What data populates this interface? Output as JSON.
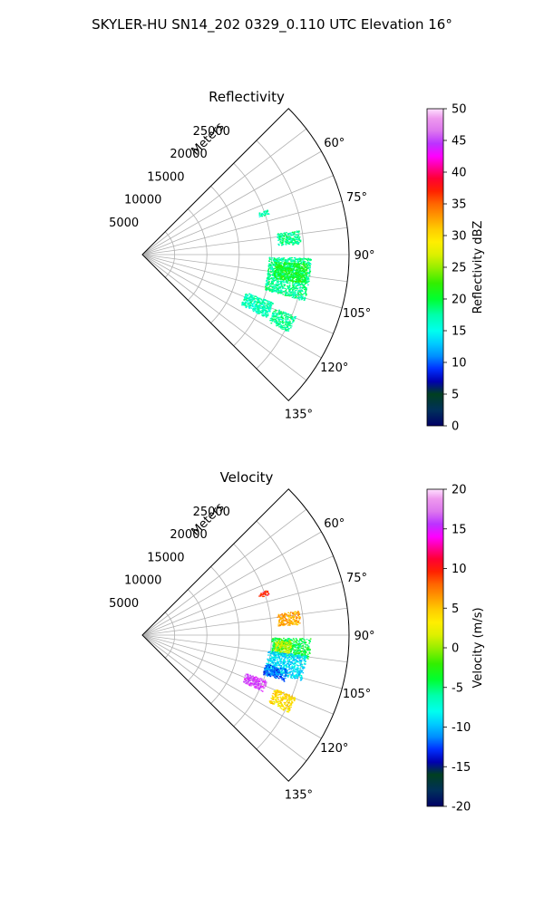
{
  "figure": {
    "suptitle": "SKYLER-HU  SN14_202  0329_0.110 UTC Elevation 16°"
  },
  "chart_data": [
    {
      "type": "polar-sector",
      "title": "Reflectivity",
      "radial_label": "Meters",
      "radial_ticks": [
        5000,
        10000,
        15000,
        20000,
        25000
      ],
      "radial_tick_labels": [
        "5000",
        "10000",
        "15000",
        "20000",
        "25000"
      ],
      "rlim": [
        0,
        32000
      ],
      "theta_ticks_deg": [
        60,
        75,
        90,
        105,
        120,
        135
      ],
      "theta_tick_labels": [
        "60°",
        "75°",
        "90°",
        "105°",
        "120°",
        "135°"
      ],
      "thetalim_deg": [
        45,
        135
      ],
      "grid": true,
      "colorbar": {
        "label": "Reflectivity dBZ",
        "range": [
          0,
          50
        ],
        "ticks": [
          0,
          5,
          10,
          15,
          20,
          25,
          30,
          35,
          40,
          45,
          50
        ],
        "tick_labels": [
          "0",
          "5",
          "10",
          "15",
          "20",
          "25",
          "30",
          "35",
          "40",
          "45",
          "50"
        ]
      },
      "echo_clusters": [
        {
          "az_deg": [
            70,
            72
          ],
          "range_m": [
            19000,
            20500
          ],
          "value": 17
        },
        {
          "az_deg": [
            81,
            86
          ],
          "range_m": [
            21000,
            24500
          ],
          "value": 18
        },
        {
          "az_deg": [
            91,
            106
          ],
          "range_m": [
            19500,
            26000
          ],
          "value": 18
        },
        {
          "az_deg": [
            93,
            100
          ],
          "range_m": [
            20500,
            25500
          ],
          "value": 21
        },
        {
          "az_deg": [
            110,
            117
          ],
          "range_m": [
            17000,
            21500
          ],
          "value": 17
        },
        {
          "az_deg": [
            112,
            118
          ],
          "range_m": [
            22000,
            25500
          ],
          "value": 18
        }
      ]
    },
    {
      "type": "polar-sector",
      "title": "Velocity",
      "radial_label": "Meters",
      "radial_ticks": [
        5000,
        10000,
        15000,
        20000,
        25000
      ],
      "radial_tick_labels": [
        "5000",
        "10000",
        "15000",
        "20000",
        "25000"
      ],
      "rlim": [
        0,
        32000
      ],
      "theta_ticks_deg": [
        60,
        75,
        90,
        105,
        120,
        135
      ],
      "theta_tick_labels": [
        "60°",
        "75°",
        "90°",
        "105°",
        "120°",
        "135°"
      ],
      "thetalim_deg": [
        45,
        135
      ],
      "grid": true,
      "colorbar": {
        "label": "Velocity (m/s)",
        "range": [
          -20,
          20
        ],
        "ticks": [
          -20,
          -15,
          -10,
          -5,
          0,
          5,
          10,
          15,
          20
        ],
        "tick_labels": [
          "-20",
          "-15",
          "-10",
          "-5",
          "0",
          "5",
          "10",
          "15",
          "20"
        ]
      },
      "echo_clusters": [
        {
          "az_deg": [
            70,
            72
          ],
          "range_m": [
            19000,
            20500
          ],
          "value": 10
        },
        {
          "az_deg": [
            81,
            86
          ],
          "range_m": [
            21000,
            24500
          ],
          "value": 6
        },
        {
          "az_deg": [
            91,
            98
          ],
          "range_m": [
            20000,
            26000
          ],
          "value": -4
        },
        {
          "az_deg": [
            92,
            97
          ],
          "range_m": [
            20500,
            23000
          ],
          "value": 1
        },
        {
          "az_deg": [
            97,
            106
          ],
          "range_m": [
            19500,
            25500
          ],
          "value": -9
        },
        {
          "az_deg": [
            103,
            108
          ],
          "range_m": [
            19500,
            23000
          ],
          "value": -12
        },
        {
          "az_deg": [
            110,
            115
          ],
          "range_m": [
            17000,
            20500
          ],
          "value": 16
        },
        {
          "az_deg": [
            112,
            118
          ],
          "range_m": [
            22000,
            25500
          ],
          "value": 4
        }
      ]
    }
  ]
}
